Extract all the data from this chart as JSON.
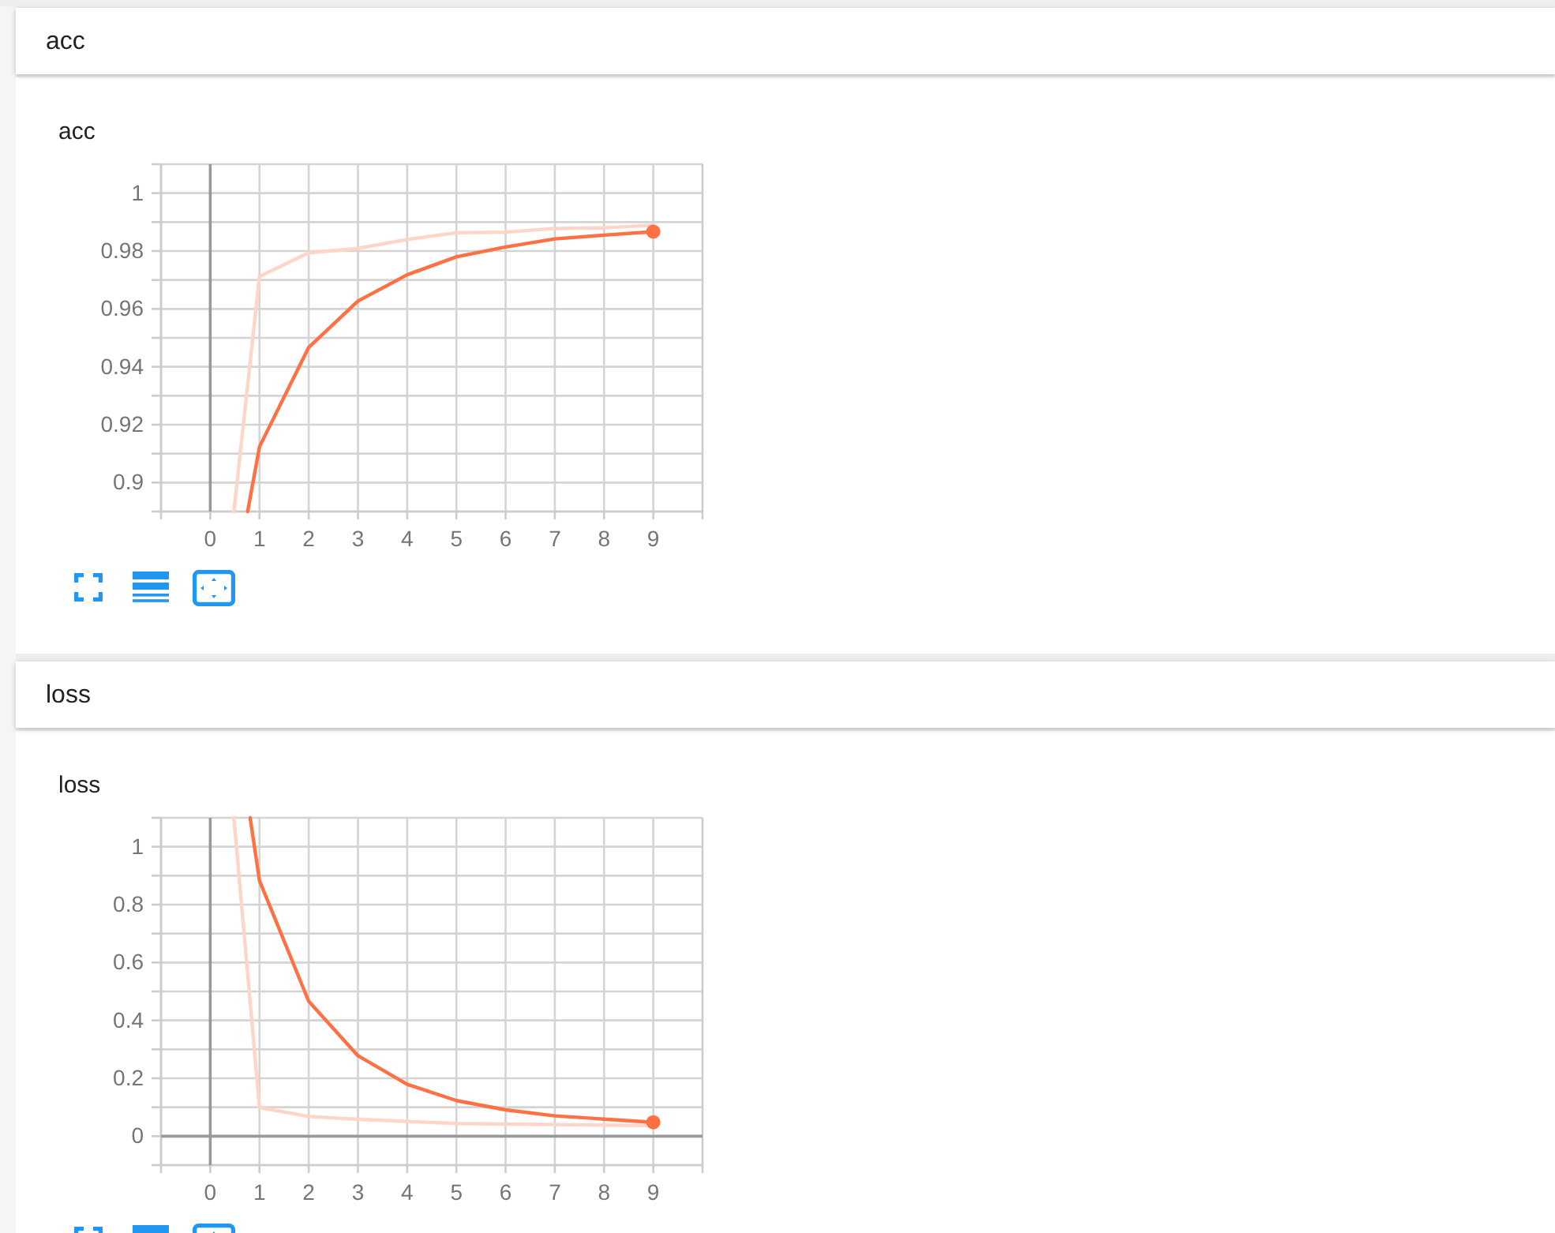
{
  "chart_data": [
    {
      "type": "line",
      "title": "acc",
      "subtitle": "acc",
      "xlim": [
        -1,
        10
      ],
      "xticks": [
        0,
        1,
        2,
        3,
        4,
        5,
        6,
        7,
        8,
        9
      ],
      "ylim": [
        0.89,
        1.01
      ],
      "yticks": [
        {
          "value": 0.89,
          "label": null
        },
        0.9,
        {
          "value": 0.91,
          "label": null
        },
        0.92,
        {
          "value": 0.93,
          "label": null
        },
        0.94,
        {
          "value": 0.95,
          "label": null
        },
        0.96,
        {
          "value": 0.97,
          "label": null
        },
        0.98,
        {
          "value": 0.99,
          "label": null
        },
        1,
        {
          "value": 1.01,
          "label": null
        }
      ],
      "grid": true,
      "ref_lines": [
        {
          "axis": "x",
          "value": 0,
          "color": "#999999"
        }
      ],
      "series": [
        {
          "color": "#fdd5c9",
          "x": [
            0.48,
            1,
            2,
            3,
            4,
            5,
            6,
            7,
            8,
            9
          ],
          "values": [
            0.89,
            0.9712,
            0.9794,
            0.9809,
            0.984,
            0.9863,
            0.9865,
            0.9878,
            0.988,
            0.9889
          ]
        },
        {
          "color": "#ff7043",
          "x": [
            0.76,
            1,
            2,
            3,
            4,
            5,
            6,
            7,
            8,
            9
          ],
          "values": [
            0.89,
            0.9124,
            0.9467,
            0.9627,
            0.9718,
            0.978,
            0.9814,
            0.9842,
            0.9855,
            0.9867
          ]
        },
        {
          "type": "scatter",
          "marker": "circle",
          "color": "#ff7043",
          "x": [
            9
          ],
          "values": [
            0.9867
          ]
        }
      ]
    },
    {
      "type": "line",
      "title": "loss",
      "subtitle": "loss",
      "xlim": [
        -1,
        10
      ],
      "xticks": [
        0,
        1,
        2,
        3,
        4,
        5,
        6,
        7,
        8,
        9
      ],
      "ylim": [
        -0.1,
        1.1
      ],
      "yticks": [
        {
          "value": -0.1,
          "label": null
        },
        0,
        {
          "value": 0.1,
          "label": null
        },
        0.2,
        {
          "value": 0.3,
          "label": null
        },
        0.4,
        {
          "value": 0.5,
          "label": null
        },
        0.6,
        {
          "value": 0.7,
          "label": null
        },
        0.8,
        {
          "value": 0.9,
          "label": null
        },
        1,
        {
          "value": 1.1,
          "label": null
        }
      ],
      "grid": true,
      "series": [
        {
          "color": "#fdd5c9",
          "x": [
            0.48,
            1,
            2,
            3,
            4,
            5,
            6,
            7,
            8,
            9
          ],
          "values": [
            1.1,
            0.099,
            0.068,
            0.058,
            0.051,
            0.044,
            0.042,
            0.04,
            0.038,
            0.037
          ]
        },
        {
          "color": "#ff7043",
          "x": [
            0.81,
            1,
            2,
            3,
            4,
            5,
            6,
            7,
            8,
            9
          ],
          "values": [
            1.1,
            0.883,
            0.466,
            0.278,
            0.179,
            0.123,
            0.091,
            0.07,
            0.059,
            0.048
          ]
        },
        {
          "type": "scatter",
          "marker": "circle",
          "color": "#ff7043",
          "x": [
            9
          ],
          "values": [
            0.048
          ]
        }
      ]
    }
  ]
}
